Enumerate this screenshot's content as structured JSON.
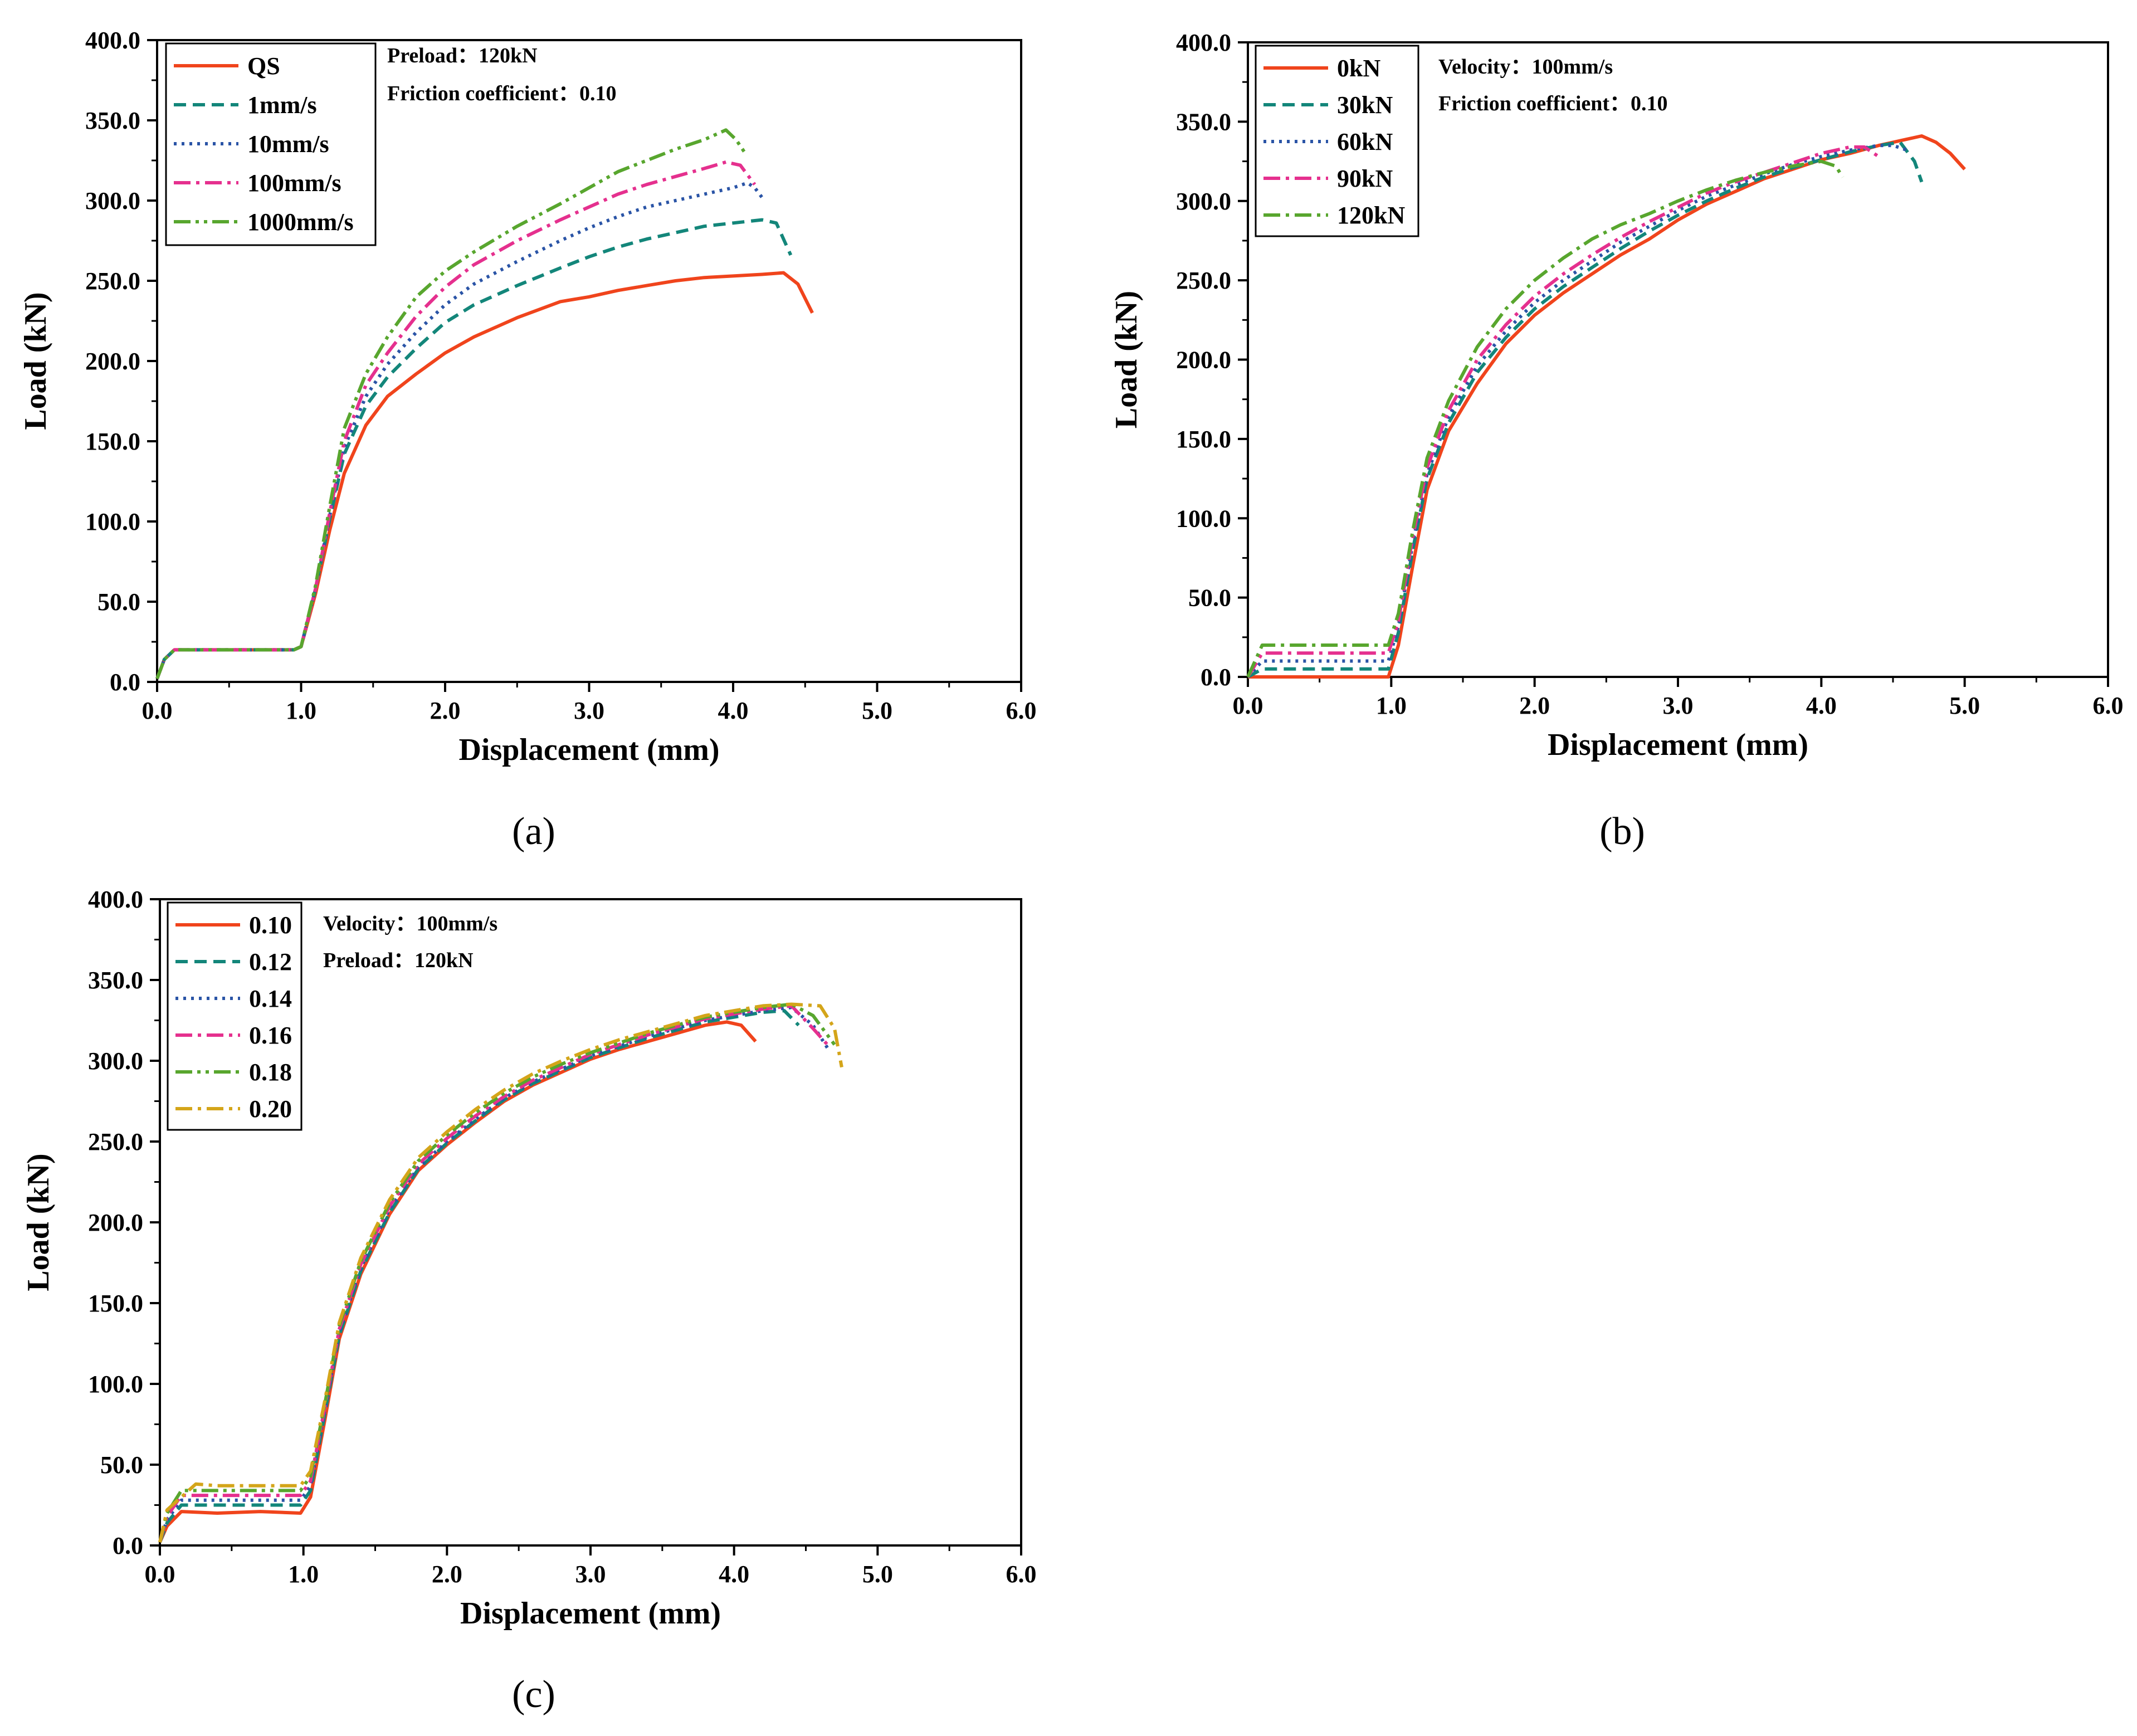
{
  "chart_data": [
    {
      "id": "a",
      "type": "line",
      "panel_label": "(a)",
      "xlabel": "Displacement (mm)",
      "ylabel": "Load (kN)",
      "xlim": [
        0,
        6
      ],
      "ylim": [
        0,
        400
      ],
      "xticks": [
        "0.0",
        "1.0",
        "2.0",
        "3.0",
        "4.0",
        "5.0",
        "6.0"
      ],
      "yticks": [
        "0.0",
        "50.0",
        "100.0",
        "150.0",
        "200.0",
        "250.0",
        "300.0",
        "350.0",
        "400.0"
      ],
      "annotations": [
        "Preload：120kN",
        "Friction coefficient：0.10"
      ],
      "legend_position": "top-left",
      "series": [
        {
          "name": "QS",
          "color": "#f0441c",
          "dash": "solid",
          "x": [
            0,
            0.05,
            0.12,
            0.3,
            0.6,
            0.95,
            1.0,
            1.1,
            1.2,
            1.3,
            1.45,
            1.6,
            1.8,
            2.0,
            2.2,
            2.5,
            2.8,
            3.0,
            3.2,
            3.4,
            3.6,
            3.8,
            4.0,
            4.2,
            4.35,
            4.45,
            4.55
          ],
          "y": [
            2,
            14,
            20,
            20,
            20,
            20,
            22,
            55,
            95,
            130,
            160,
            178,
            192,
            205,
            215,
            227,
            237,
            240,
            244,
            247,
            250,
            252,
            253,
            254,
            255,
            248,
            230
          ]
        },
        {
          "name": "1mm/s",
          "color": "#13867a",
          "dash": "dashed",
          "x": [
            0,
            0.05,
            0.12,
            0.3,
            0.6,
            0.95,
            1.0,
            1.1,
            1.2,
            1.3,
            1.45,
            1.6,
            1.8,
            2.0,
            2.2,
            2.5,
            2.8,
            3.0,
            3.2,
            3.4,
            3.6,
            3.8,
            4.0,
            4.2,
            4.3,
            4.4
          ],
          "y": [
            2,
            14,
            20,
            20,
            20,
            20,
            22,
            58,
            102,
            142,
            172,
            190,
            208,
            224,
            235,
            247,
            258,
            265,
            271,
            276,
            280,
            284,
            286,
            288,
            286,
            266
          ]
        },
        {
          "name": "10mm/s",
          "color": "#2a54a6",
          "dash": "dotted",
          "x": [
            0,
            0.05,
            0.12,
            0.3,
            0.6,
            0.95,
            1.0,
            1.1,
            1.2,
            1.3,
            1.45,
            1.6,
            1.8,
            2.0,
            2.2,
            2.5,
            2.8,
            3.0,
            3.2,
            3.4,
            3.6,
            3.8,
            4.0,
            4.1,
            4.15,
            4.2
          ],
          "y": [
            2,
            14,
            20,
            20,
            20,
            20,
            22,
            58,
            104,
            146,
            178,
            198,
            218,
            235,
            248,
            262,
            275,
            283,
            290,
            296,
            300,
            304,
            308,
            311,
            308,
            302
          ]
        },
        {
          "name": "100mm/s",
          "color": "#e5308e",
          "dash": "dashdot",
          "x": [
            0,
            0.05,
            0.12,
            0.3,
            0.6,
            0.95,
            1.0,
            1.1,
            1.2,
            1.3,
            1.45,
            1.6,
            1.8,
            2.0,
            2.2,
            2.5,
            2.8,
            3.0,
            3.2,
            3.4,
            3.6,
            3.8,
            3.95,
            4.05,
            4.15
          ],
          "y": [
            2,
            14,
            20,
            20,
            20,
            20,
            22,
            58,
            106,
            150,
            185,
            205,
            228,
            246,
            260,
            275,
            288,
            296,
            304,
            310,
            315,
            320,
            324,
            322,
            310
          ]
        },
        {
          "name": "1000mm/s",
          "color": "#58a62e",
          "dash": "dashdotdot",
          "x": [
            0,
            0.05,
            0.12,
            0.3,
            0.6,
            0.95,
            1.0,
            1.1,
            1.2,
            1.3,
            1.45,
            1.6,
            1.8,
            2.0,
            2.2,
            2.5,
            2.8,
            3.0,
            3.2,
            3.4,
            3.6,
            3.8,
            3.95,
            4.02,
            4.08
          ],
          "y": [
            2,
            14,
            20,
            20,
            20,
            20,
            22,
            60,
            110,
            158,
            192,
            215,
            240,
            256,
            268,
            284,
            298,
            308,
            318,
            325,
            332,
            338,
            344,
            338,
            330
          ]
        }
      ]
    },
    {
      "id": "b",
      "type": "line",
      "panel_label": "(b)",
      "xlabel": "Displacement (mm)",
      "ylabel": "Load (kN)",
      "xlim": [
        0,
        6
      ],
      "ylim": [
        0,
        400
      ],
      "xticks": [
        "0.0",
        "1.0",
        "2.0",
        "3.0",
        "4.0",
        "5.0",
        "6.0"
      ],
      "yticks": [
        "0.0",
        "50.0",
        "100.0",
        "150.0",
        "200.0",
        "250.0",
        "300.0",
        "350.0",
        "400.0"
      ],
      "annotations": [
        "Velocity：100mm/s",
        "Friction coefficient：0.10"
      ],
      "legend_position": "top-left",
      "series": [
        {
          "name": "0kN",
          "color": "#f0441c",
          "dash": "solid",
          "x": [
            0,
            0.5,
            0.98,
            1.05,
            1.15,
            1.25,
            1.4,
            1.6,
            1.8,
            2.0,
            2.2,
            2.4,
            2.6,
            2.8,
            3.0,
            3.2,
            3.4,
            3.6,
            3.8,
            4.0,
            4.2,
            4.4,
            4.6,
            4.7,
            4.8,
            4.9,
            5.0
          ],
          "y": [
            0,
            0,
            0,
            20,
            70,
            118,
            155,
            185,
            210,
            228,
            242,
            254,
            266,
            276,
            288,
            298,
            306,
            314,
            320,
            326,
            330,
            335,
            339,
            341,
            337,
            330,
            320
          ]
        },
        {
          "name": "30kN",
          "color": "#13867a",
          "dash": "dashed",
          "x": [
            0,
            0.1,
            0.5,
            0.98,
            1.05,
            1.15,
            1.25,
            1.4,
            1.6,
            1.8,
            2.0,
            2.2,
            2.4,
            2.6,
            2.8,
            3.0,
            3.2,
            3.4,
            3.6,
            3.8,
            4.0,
            4.2,
            4.4,
            4.55,
            4.65,
            4.7
          ],
          "y": [
            0,
            5,
            5,
            5,
            28,
            80,
            125,
            160,
            192,
            214,
            232,
            246,
            258,
            270,
            281,
            291,
            300,
            308,
            315,
            321,
            326,
            331,
            335,
            337,
            325,
            312
          ]
        },
        {
          "name": "60kN",
          "color": "#2a54a6",
          "dash": "dotted",
          "x": [
            0,
            0.1,
            0.5,
            0.98,
            1.05,
            1.15,
            1.25,
            1.4,
            1.6,
            1.8,
            2.0,
            2.2,
            2.4,
            2.6,
            2.8,
            3.0,
            3.2,
            3.4,
            3.6,
            3.8,
            4.0,
            4.2,
            4.4,
            4.5,
            4.6
          ],
          "y": [
            0,
            10,
            10,
            10,
            32,
            84,
            128,
            164,
            196,
            218,
            236,
            250,
            262,
            274,
            284,
            294,
            303,
            310,
            317,
            323,
            328,
            332,
            335,
            335,
            332
          ]
        },
        {
          "name": "90kN",
          "color": "#e5308e",
          "dash": "dashdot",
          "x": [
            0,
            0.1,
            0.5,
            0.98,
            1.05,
            1.15,
            1.25,
            1.4,
            1.6,
            1.8,
            2.0,
            2.2,
            2.4,
            2.6,
            2.8,
            3.0,
            3.2,
            3.4,
            3.6,
            3.8,
            4.0,
            4.2,
            4.3,
            4.4
          ],
          "y": [
            0,
            15,
            15,
            15,
            35,
            88,
            132,
            168,
            200,
            222,
            240,
            254,
            266,
            277,
            287,
            296,
            305,
            312,
            318,
            324,
            330,
            334,
            334,
            328
          ]
        },
        {
          "name": "120kN",
          "color": "#58a62e",
          "dash": "dashdot",
          "x": [
            0,
            0.1,
            0.5,
            0.98,
            1.05,
            1.15,
            1.25,
            1.4,
            1.6,
            1.8,
            2.0,
            2.2,
            2.4,
            2.6,
            2.8,
            3.0,
            3.2,
            3.4,
            3.6,
            3.8,
            4.0,
            4.1,
            4.15
          ],
          "y": [
            0,
            20,
            20,
            20,
            40,
            92,
            138,
            174,
            208,
            232,
            250,
            264,
            276,
            285,
            292,
            300,
            307,
            313,
            318,
            322,
            325,
            322,
            315
          ]
        }
      ]
    },
    {
      "id": "c",
      "type": "line",
      "panel_label": "(c)",
      "xlabel": "Displacement (mm)",
      "ylabel": "Load (kN)",
      "xlim": [
        0,
        6
      ],
      "ylim": [
        0,
        400
      ],
      "xticks": [
        "0.0",
        "1.0",
        "2.0",
        "3.0",
        "4.0",
        "5.0",
        "6.0"
      ],
      "yticks": [
        "0.0",
        "50.0",
        "100.0",
        "150.0",
        "200.0",
        "250.0",
        "300.0",
        "350.0",
        "400.0"
      ],
      "annotations": [
        "Velocity：100mm/s",
        "Preload：120kN"
      ],
      "legend_position": "top-left",
      "series": [
        {
          "name": "0.10",
          "color": "#f0441c",
          "dash": "solid",
          "x": [
            0,
            0.05,
            0.15,
            0.4,
            0.7,
            0.98,
            1.05,
            1.15,
            1.25,
            1.4,
            1.6,
            1.8,
            2.0,
            2.2,
            2.4,
            2.6,
            2.8,
            3.0,
            3.2,
            3.4,
            3.6,
            3.8,
            3.95,
            4.05,
            4.15
          ],
          "y": [
            2,
            12,
            21,
            20,
            21,
            20,
            30,
            78,
            128,
            168,
            205,
            232,
            248,
            262,
            275,
            285,
            293,
            301,
            307,
            312,
            317,
            322,
            324,
            322,
            312
          ]
        },
        {
          "name": "0.12",
          "color": "#13867a",
          "dash": "dashed",
          "x": [
            0,
            0.05,
            0.15,
            0.4,
            0.7,
            0.98,
            1.05,
            1.15,
            1.25,
            1.4,
            1.6,
            1.8,
            2.0,
            2.2,
            2.4,
            2.6,
            2.8,
            3.0,
            3.2,
            3.4,
            3.6,
            3.8,
            4.0,
            4.2,
            4.35,
            4.45
          ],
          "y": [
            2,
            14,
            25,
            25,
            25,
            25,
            34,
            82,
            130,
            170,
            206,
            233,
            249,
            263,
            276,
            286,
            294,
            302,
            308,
            314,
            319,
            324,
            327,
            330,
            331,
            322
          ]
        },
        {
          "name": "0.14",
          "color": "#2a54a6",
          "dash": "dotted",
          "x": [
            0,
            0.05,
            0.15,
            0.4,
            0.7,
            0.98,
            1.05,
            1.15,
            1.25,
            1.4,
            1.6,
            1.8,
            2.0,
            2.2,
            2.4,
            2.6,
            2.8,
            3.0,
            3.2,
            3.4,
            3.6,
            3.8,
            4.0,
            4.2,
            4.4,
            4.55,
            4.65
          ],
          "y": [
            2,
            16,
            28,
            28,
            28,
            28,
            37,
            84,
            132,
            172,
            208,
            234,
            250,
            264,
            277,
            287,
            295,
            303,
            309,
            315,
            320,
            325,
            328,
            331,
            333,
            322,
            308
          ]
        },
        {
          "name": "0.16",
          "color": "#e5308e",
          "dash": "dashdot",
          "x": [
            0,
            0.05,
            0.15,
            0.4,
            0.7,
            0.98,
            1.05,
            1.15,
            1.25,
            1.4,
            1.6,
            1.8,
            2.0,
            2.2,
            2.4,
            2.6,
            2.8,
            3.0,
            3.2,
            3.4,
            3.6,
            3.8,
            4.0,
            4.2,
            4.4,
            4.55,
            4.65
          ],
          "y": [
            2,
            18,
            31,
            31,
            31,
            31,
            40,
            86,
            134,
            174,
            210,
            236,
            252,
            266,
            278,
            288,
            296,
            304,
            310,
            316,
            321,
            326,
            329,
            332,
            334,
            320,
            310
          ]
        },
        {
          "name": "0.18",
          "color": "#58a62e",
          "dash": "dashdotdot",
          "x": [
            0,
            0.05,
            0.15,
            0.4,
            0.7,
            0.98,
            1.05,
            1.15,
            1.25,
            1.4,
            1.6,
            1.8,
            2.0,
            2.2,
            2.4,
            2.6,
            2.8,
            3.0,
            3.2,
            3.4,
            3.6,
            3.8,
            4.0,
            4.2,
            4.4,
            4.55,
            4.7
          ],
          "y": [
            2,
            20,
            34,
            34,
            34,
            34,
            43,
            88,
            136,
            176,
            212,
            238,
            254,
            268,
            280,
            290,
            298,
            305,
            311,
            317,
            322,
            327,
            330,
            333,
            335,
            328,
            310
          ]
        },
        {
          "name": "0.20",
          "color": "#d4a51a",
          "dash": "dashdot",
          "x": [
            0,
            0.05,
            0.25,
            0.4,
            0.7,
            0.98,
            1.05,
            1.15,
            1.25,
            1.4,
            1.6,
            1.8,
            2.0,
            2.2,
            2.4,
            2.6,
            2.8,
            3.0,
            3.2,
            3.4,
            3.6,
            3.8,
            4.0,
            4.2,
            4.4,
            4.6,
            4.7,
            4.75
          ],
          "y": [
            2,
            22,
            38,
            37,
            37,
            37,
            46,
            90,
            138,
            178,
            214,
            240,
            256,
            270,
            282,
            292,
            300,
            307,
            313,
            318,
            323,
            328,
            331,
            334,
            335,
            334,
            320,
            296
          ]
        }
      ]
    }
  ]
}
